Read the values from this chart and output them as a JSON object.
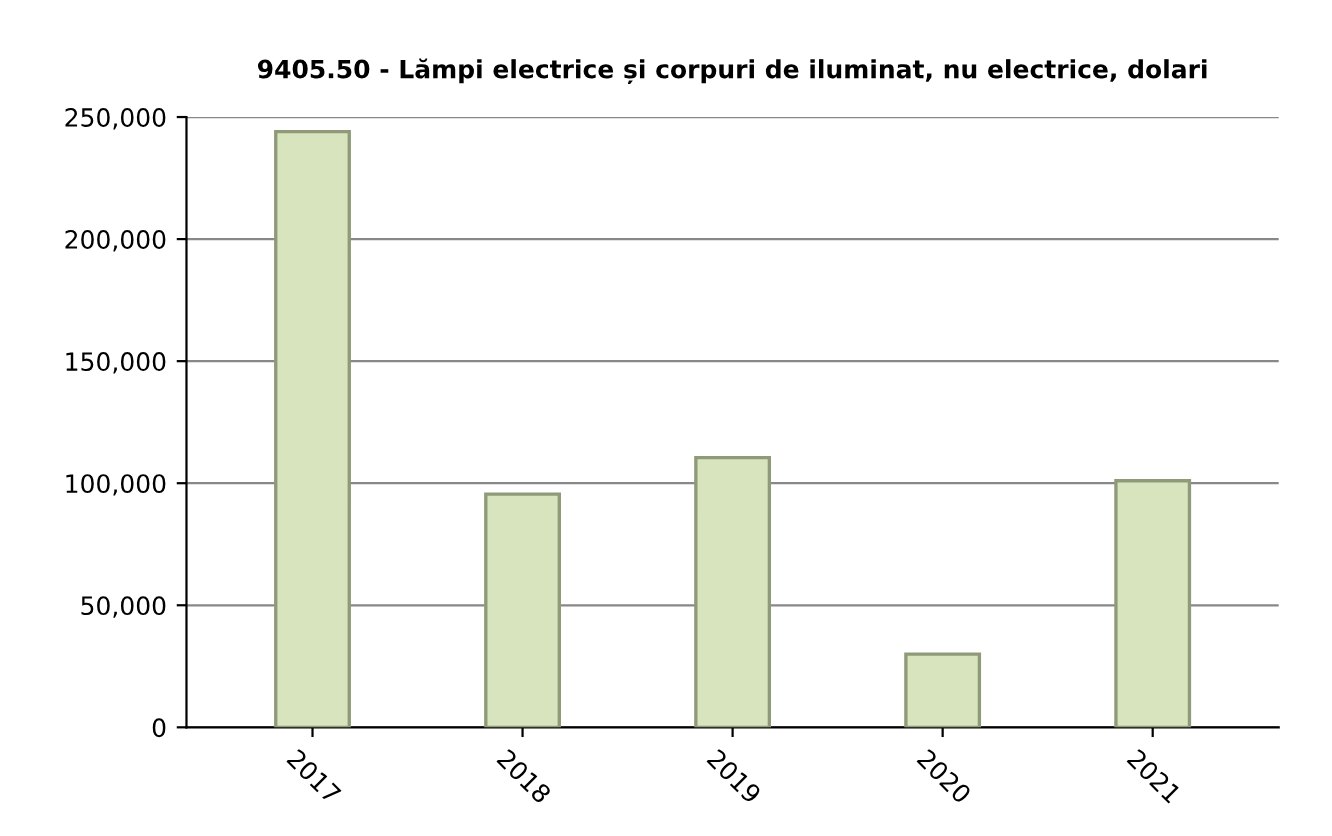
{
  "chart_data": {
    "type": "bar",
    "title": "9405.50 - Lămpi electrice și corpuri de iluminat, nu electrice, dolari",
    "categories": [
      "2017",
      "2018",
      "2019",
      "2020",
      "2021"
    ],
    "values": [
      244000,
      95500,
      110500,
      30000,
      101000
    ],
    "color": "#d7e4bd",
    "ylim": [
      0,
      250000
    ],
    "yticks": [
      {
        "value": 0,
        "label": "0"
      },
      {
        "value": 50000,
        "label": "50,000"
      },
      {
        "value": 100000,
        "label": "100,000"
      },
      {
        "value": 150000,
        "label": "150,000"
      },
      {
        "value": 200000,
        "label": "200,000"
      },
      {
        "value": 250000,
        "label": "250,000"
      }
    ],
    "grid": "y",
    "legend": false
  }
}
